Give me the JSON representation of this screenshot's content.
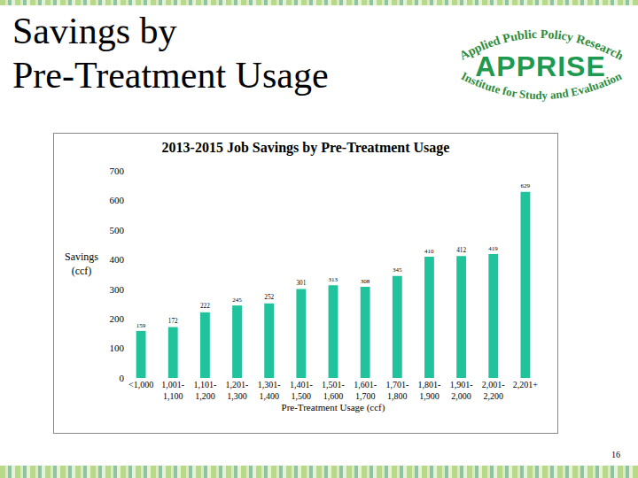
{
  "slide": {
    "title_lines": [
      "Savings by",
      "Pre-Treatment Usage"
    ],
    "logo": {
      "top": "Applied Public Policy Research",
      "name": "APPRISE",
      "bottom": "Institute for Study and Evaluation"
    },
    "page_number": "16"
  },
  "chart_data": {
    "type": "bar",
    "title": "2013-2015 Job Savings by Pre-Treatment Usage",
    "x_label": "Pre-Treatment Usage (ccf)",
    "y_label": "Savings (ccf)",
    "categories": [
      "<1,000",
      "1,001-1,100",
      "1,101-1,200",
      "1,201-1,300",
      "1,301-1,400",
      "1,401-1,500",
      "1,501-1,600",
      "1,601-1,700",
      "1,701-1,800",
      "1,801-1,900",
      "1,901-2,000",
      "2,001-2,200",
      "2,201+"
    ],
    "values": [
      159,
      172,
      222,
      245,
      252,
      301,
      313,
      308,
      345,
      410,
      412,
      419,
      629
    ],
    "color": "#21c39c",
    "ylim": [
      0,
      700
    ],
    "yticks": [
      0,
      100,
      200,
      300,
      400,
      500,
      600,
      700
    ],
    "grid": false,
    "data_labels": true
  }
}
